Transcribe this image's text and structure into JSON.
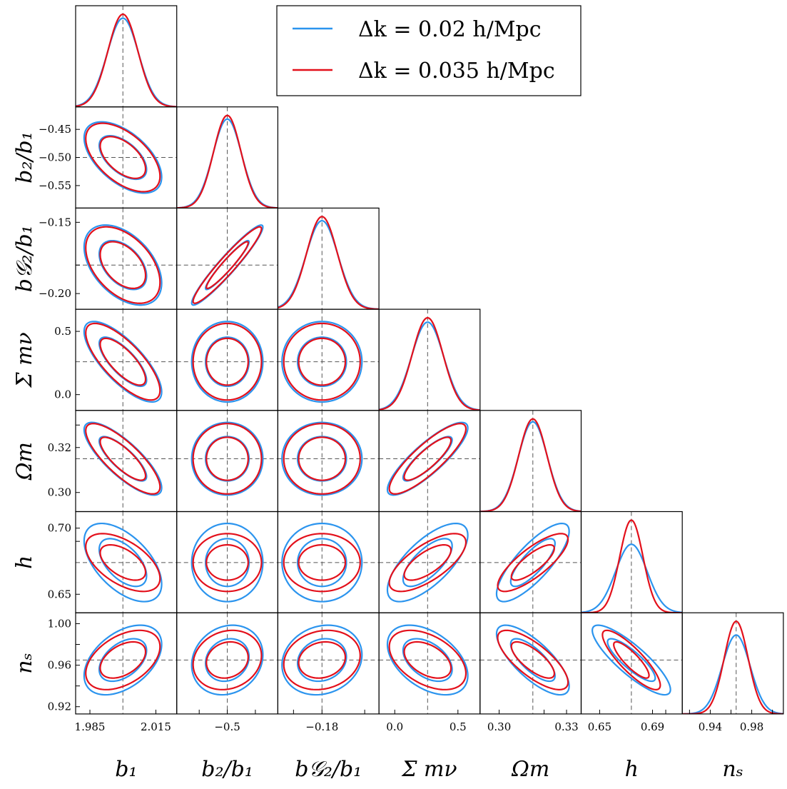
{
  "chart_data": {
    "type": "corner",
    "parameters": [
      {
        "key": "b1",
        "label": "b₁",
        "center": 2.0,
        "ticks": [
          1.985,
          2.015
        ],
        "tick_labels": [
          "1.985",
          "2.015"
        ],
        "range": [
          1.9785,
          2.0245
        ]
      },
      {
        "key": "b2b1",
        "label": "b₂/b₁",
        "center": -0.5,
        "ticks": [
          -0.55,
          -0.5,
          -0.45
        ],
        "tick_labels": [
          "−0.55",
          "−0.50",
          "−0.45"
        ],
        "x_tick_labels": [
          "",
          "−0.5",
          ""
        ],
        "range": [
          -0.59,
          -0.41
        ]
      },
      {
        "key": "bg2b1",
        "label": "b𝒢₂/b₁",
        "center": -0.18,
        "ticks": [
          -0.2,
          -0.18,
          -0.15
        ],
        "tick_labels": [
          "−0.20",
          "−0.18",
          "−0.15"
        ],
        "y_tick_labels": [
          "−0.20",
          "",
          "−0.15"
        ],
        "x_tick_labels": [
          "",
          "−0.18",
          ""
        ],
        "range": [
          -0.211,
          -0.14
        ]
      },
      {
        "key": "mnu",
        "label": "Σ mν",
        "center": 0.26,
        "ticks": [
          0.0,
          0.5
        ],
        "tick_labels": [
          "0.0",
          "0.5"
        ],
        "range": [
          -0.125,
          0.675
        ]
      },
      {
        "key": "om",
        "label": "Ωm",
        "center": 0.315,
        "ticks": [
          0.3,
          0.32,
          0.33
        ],
        "tick_labels": [
          "0.30",
          "0.32",
          "0.33"
        ],
        "y_tick_labels": [
          "0.30",
          "0.32",
          ""
        ],
        "x_tick_labels": [
          "0.30",
          "",
          "0.33"
        ],
        "range": [
          0.2915,
          0.3365
        ]
      },
      {
        "key": "h",
        "label": "h",
        "center": 0.674,
        "ticks": [
          0.65,
          0.69,
          0.7
        ],
        "tick_labels": [
          "0.65",
          "0.69",
          "0.70"
        ],
        "y_tick_labels": [
          "0.65",
          "",
          "0.70"
        ],
        "x_tick_labels": [
          "0.65",
          "0.69",
          ""
        ],
        "range": [
          0.636,
          0.7125
        ]
      },
      {
        "key": "ns",
        "label": "nₛ",
        "center": 0.965,
        "ticks": [
          0.92,
          0.94,
          0.96,
          0.98,
          1.0
        ],
        "tick_labels": [
          "0.92",
          "0.94",
          "0.96",
          "0.98",
          "1.00"
        ],
        "y_tick_labels": [
          "0.92",
          "",
          "0.96",
          "",
          "1.00"
        ],
        "x_tick_labels": [
          "",
          "0.94",
          "",
          "0.98",
          ""
        ],
        "range": [
          0.913,
          1.0105
        ]
      }
    ],
    "series": [
      {
        "name": "Δk = 0.02 h/Mpc",
        "color": "#2b94ee",
        "sigma": {
          "b1": 0.0071,
          "b2b1": 0.0255,
          "bg2b1": 0.0113,
          "mnu": 0.128,
          "om": 0.0065,
          "h": 0.0119,
          "ns": 0.0135
        },
        "corr": {
          "b2b1|b1": -0.55,
          "bg2b1|b1": -0.45,
          "bg2b1|b2b1": 0.95,
          "mnu|b1": -0.75,
          "mnu|b2b1": 0.0,
          "mnu|bg2b1": 0.0,
          "om|b1": -0.8,
          "om|b2b1": 0.0,
          "om|bg2b1": 0.0,
          "om|mnu": 0.85,
          "h|b1": -0.55,
          "h|b2b1": 0.0,
          "h|bg2b1": 0.0,
          "h|mnu": 0.7,
          "h|om": 0.8,
          "ns|b1": 0.45,
          "ns|b2b1": 0.15,
          "ns|bg2b1": 0.15,
          "ns|mnu": -0.45,
          "ns|om": -0.75,
          "ns|h": -0.85
        }
      },
      {
        "name": "Δk = 0.035 h/Mpc",
        "color": "#e3101b",
        "sigma": {
          "b1": 0.0068,
          "b2b1": 0.0245,
          "bg2b1": 0.0108,
          "mnu": 0.122,
          "om": 0.0063,
          "h": 0.0088,
          "ns": 0.0115
        },
        "corr": {
          "b2b1|b1": -0.55,
          "bg2b1|b1": -0.45,
          "bg2b1|b2b1": 0.95,
          "mnu|b1": -0.75,
          "mnu|b2b1": 0.0,
          "mnu|bg2b1": 0.0,
          "om|b1": -0.8,
          "om|b2b1": 0.0,
          "om|bg2b1": 0.0,
          "om|mnu": 0.85,
          "h|b1": -0.55,
          "h|b2b1": 0.0,
          "h|bg2b1": 0.0,
          "h|mnu": 0.7,
          "h|om": 0.8,
          "ns|b1": 0.45,
          "ns|b2b1": 0.15,
          "ns|bg2b1": 0.15,
          "ns|mnu": -0.45,
          "ns|om": -0.75,
          "ns|h": -0.85
        }
      }
    ],
    "contour_levels": [
      "68%",
      "95%"
    ],
    "reference_lines": "dashed grey at fiducial values",
    "legend_position": "top-right"
  }
}
